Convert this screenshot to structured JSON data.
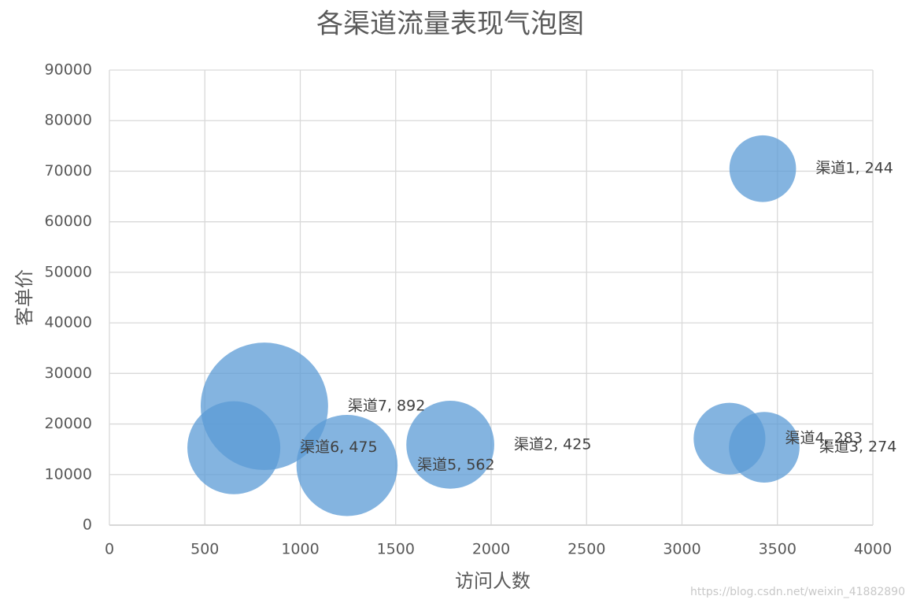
{
  "chart_data": {
    "type": "bubble",
    "title": "各渠道流量表现气泡图",
    "x_label": "访问人数",
    "y_label": "客单价",
    "x": [
      3423,
      1786,
      3431,
      3249,
      1245,
      652,
      812
    ],
    "values": [
      70500,
      15900,
      15400,
      17100,
      11800,
      15300,
      23500
    ],
    "sizes": [
      244,
      425,
      274,
      283,
      562,
      475,
      892
    ],
    "value_labels": [
      "渠道1, 244",
      "渠道2, 425",
      "渠道3, 274",
      "渠道4, 283",
      "渠道5, 562",
      "渠道6, 475",
      "渠道7, 892"
    ],
    "color": "#5b9bd5",
    "xlim": [
      0,
      4000
    ],
    "xticks": [
      0,
      500,
      1000,
      1500,
      2000,
      2500,
      3000,
      3500,
      4000
    ],
    "ylim": [
      0,
      90000
    ],
    "yticks": [
      0,
      10000,
      20000,
      30000,
      40000,
      50000,
      60000,
      70000,
      80000,
      90000
    ],
    "grid": true,
    "watermark": "https://blog.csdn.net/weixin_41882890"
  }
}
